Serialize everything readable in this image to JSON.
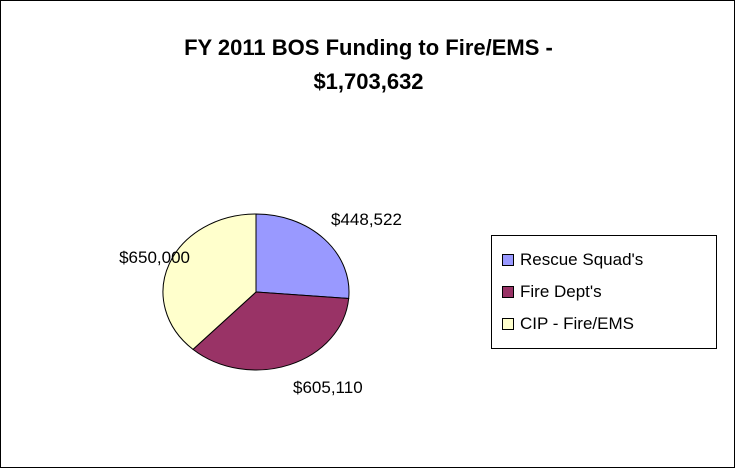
{
  "chart_data": {
    "type": "pie",
    "title": "FY 2011 BOS Funding to Fire/EMS - $1,703,632",
    "title_lines": [
      "FY 2011 BOS Funding to Fire/EMS -",
      "$1,703,632"
    ],
    "start_angle_deg": 0,
    "direction": "clockwise",
    "legend_position": "right",
    "slices": [
      {
        "name": "Rescue Squad's",
        "value": 448522,
        "label": "$448,522",
        "color": "#9999ff"
      },
      {
        "name": "Fire Dept's",
        "value": 605110,
        "label": "$605,110",
        "color": "#993366"
      },
      {
        "name": "CIP - Fire/EMS",
        "value": 650000,
        "label": "$650,000",
        "color": "#ffffcc"
      }
    ]
  }
}
